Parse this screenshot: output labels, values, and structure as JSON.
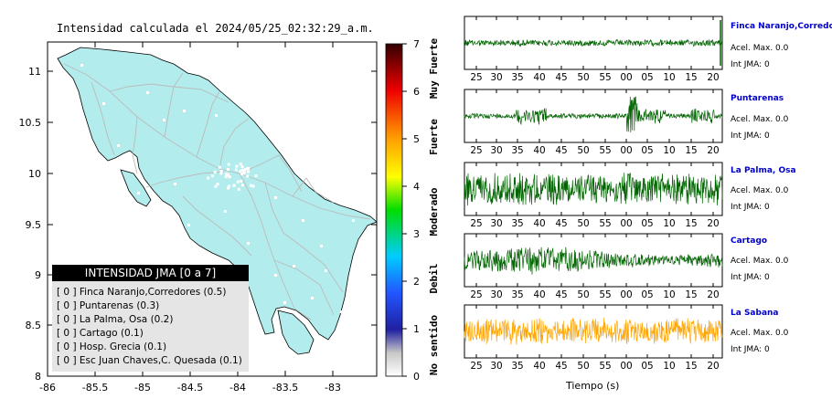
{
  "map": {
    "title": "Intensidad calculada el 2024/05/25_02:32:29_a.m.",
    "x_ticks": [
      "-86",
      "-85.5",
      "-85",
      "-84.5",
      "-84",
      "-83.5",
      "-83"
    ],
    "y_ticks": [
      "11",
      "10.5",
      "10",
      "9.5",
      "9",
      "8.5",
      "8"
    ],
    "land_color": "#b3ecec",
    "road_color": "#bbbbbb",
    "border_color": "#000000"
  },
  "colorbar": {
    "ticks": [
      "7",
      "6",
      "5",
      "4",
      "3",
      "2",
      "1",
      "0"
    ],
    "labels": [
      "Muy Fuerte",
      "Fuerte",
      "Moderado",
      "Debil",
      "No sentido"
    ]
  },
  "legend": {
    "title": "INTENSIDAD JMA [0 a 7]",
    "items": [
      "[ 0 ]  Finca Naranjo,Corredores (0.5)",
      "[ 0 ]  Puntarenas (0.3)",
      "[ 0 ]  La Palma, Osa (0.2)",
      "[ 0 ]  Cartago (0.1)",
      "[ 0 ]  Hosp. Grecia (0.1)",
      "[ 0 ]  Esc Juan Chaves,C. Quesada (0.1)"
    ]
  },
  "seismograms": {
    "x_ticks": [
      "25",
      "30",
      "35",
      "40",
      "45",
      "50",
      "55",
      "00",
      "05",
      "10",
      "15",
      "20"
    ],
    "x_label": "Tiempo (s)",
    "stations": [
      {
        "name": "Finca Naranjo,Corredor",
        "accel": "Acel. Max. 0.0",
        "jma": "Int JMA: 0",
        "color": "#006400"
      },
      {
        "name": "Puntarenas",
        "accel": "Acel. Max. 0.0",
        "jma": "Int JMA: 0",
        "color": "#006400"
      },
      {
        "name": "La Palma, Osa",
        "accel": "Acel. Max. 0.0",
        "jma": "Int JMA: 0",
        "color": "#006400"
      },
      {
        "name": "Cartago",
        "accel": "Acel. Max. 0.0",
        "jma": "Int JMA: 0",
        "color": "#006400"
      },
      {
        "name": "La Sabana",
        "accel": "Acel. Max. 0.0",
        "jma": "Int JMA: 0",
        "color": "#ffa500"
      }
    ]
  }
}
